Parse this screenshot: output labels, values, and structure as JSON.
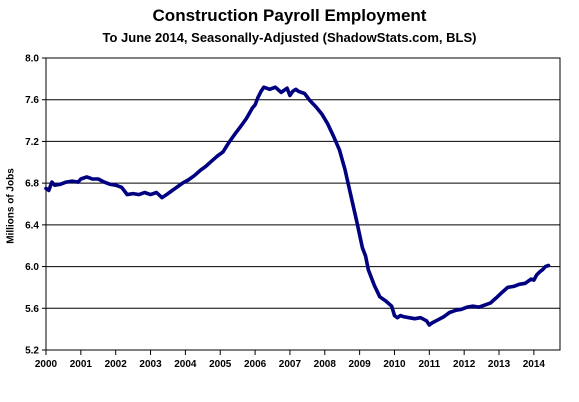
{
  "chart_data": {
    "type": "line",
    "title": "Construction Payroll Employment",
    "subtitle": "To June 2014, Seasonally-Adjusted (ShadowStats.com, BLS)",
    "xlabel": "",
    "ylabel": "Millions  of Jobs",
    "ylim": [
      5.2,
      8.0
    ],
    "yticks": [
      "5.2",
      "5.6",
      "6.0",
      "6.4",
      "6.8",
      "7.2",
      "7.6",
      "8.0"
    ],
    "xticks": [
      "2000",
      "2001",
      "2002",
      "2003",
      "2004",
      "2005",
      "2006",
      "2007",
      "2008",
      "2009",
      "2010",
      "2011",
      "2012",
      "2013",
      "2014"
    ],
    "xlim": [
      2000.0,
      2014.75
    ],
    "grid": true,
    "line_color": "#000080",
    "series": [
      {
        "name": "",
        "x": [
          2000.0,
          2000.08,
          2000.17,
          2000.25,
          2000.42,
          2000.58,
          2000.75,
          2000.92,
          2001.0,
          2001.17,
          2001.25,
          2001.33,
          2001.5,
          2001.67,
          2001.83,
          2002.0,
          2002.17,
          2002.33,
          2002.5,
          2002.67,
          2002.83,
          2003.0,
          2003.17,
          2003.33,
          2003.5,
          2003.58,
          2003.75,
          2003.92,
          2004.08,
          2004.25,
          2004.42,
          2004.58,
          2004.75,
          2004.92,
          2005.08,
          2005.25,
          2005.42,
          2005.58,
          2005.75,
          2005.92,
          2006.0,
          2006.08,
          2006.17,
          2006.25,
          2006.42,
          2006.58,
          2006.75,
          2006.92,
          2007.0,
          2007.08,
          2007.17,
          2007.25,
          2007.42,
          2007.58,
          2007.75,
          2007.92,
          2008.08,
          2008.25,
          2008.42,
          2008.58,
          2008.75,
          2008.92,
          2009.08,
          2009.17,
          2009.25,
          2009.42,
          2009.58,
          2009.75,
          2009.92,
          2010.0,
          2010.08,
          2010.17,
          2010.25,
          2010.42,
          2010.58,
          2010.75,
          2010.92,
          2011.0,
          2011.08,
          2011.25,
          2011.42,
          2011.58,
          2011.75,
          2011.92,
          2012.08,
          2012.25,
          2012.42,
          2012.58,
          2012.75,
          2012.92,
          2013.08,
          2013.25,
          2013.42,
          2013.58,
          2013.75,
          2013.92,
          2014.0,
          2014.08,
          2014.17,
          2014.25,
          2014.33,
          2014.42
        ],
        "values": [
          6.75,
          6.73,
          6.81,
          6.78,
          6.79,
          6.81,
          6.82,
          6.81,
          6.84,
          6.86,
          6.85,
          6.84,
          6.84,
          6.81,
          6.79,
          6.78,
          6.76,
          6.69,
          6.7,
          6.69,
          6.71,
          6.69,
          6.71,
          6.66,
          6.7,
          6.72,
          6.76,
          6.8,
          6.83,
          6.87,
          6.92,
          6.96,
          7.01,
          7.06,
          7.1,
          7.19,
          7.27,
          7.34,
          7.42,
          7.52,
          7.55,
          7.62,
          7.68,
          7.72,
          7.7,
          7.72,
          7.67,
          7.71,
          7.64,
          7.68,
          7.7,
          7.68,
          7.66,
          7.59,
          7.53,
          7.46,
          7.37,
          7.25,
          7.12,
          6.93,
          6.68,
          6.43,
          6.18,
          6.1,
          5.97,
          5.82,
          5.71,
          5.67,
          5.62,
          5.53,
          5.51,
          5.53,
          5.52,
          5.51,
          5.5,
          5.51,
          5.48,
          5.44,
          5.46,
          5.49,
          5.52,
          5.56,
          5.58,
          5.59,
          5.61,
          5.62,
          5.61,
          5.63,
          5.65,
          5.7,
          5.75,
          5.8,
          5.81,
          5.83,
          5.84,
          5.88,
          5.87,
          5.92,
          5.95,
          5.97,
          6.0,
          6.01
        ]
      }
    ]
  }
}
